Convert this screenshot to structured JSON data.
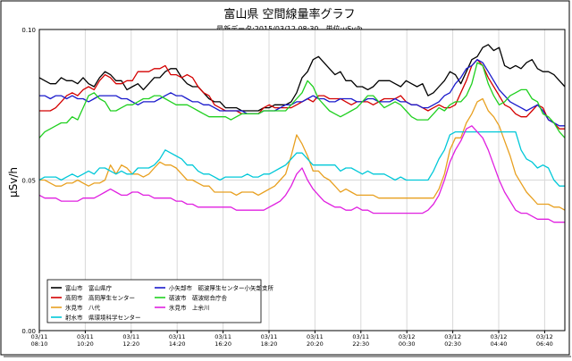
{
  "chart_data": {
    "type": "line",
    "title": "富山県 空間線量率グラフ",
    "subtitle": "最新データ:2015/03/12 08:30　単位:μSv/h",
    "ylabel": "μSv/h",
    "xlabel": "",
    "ylim": [
      0.0,
      0.1
    ],
    "yticks": [
      "0.00",
      "0.05",
      "0.10"
    ],
    "ytick_values": [
      0.0,
      0.05,
      0.1
    ],
    "grid": true,
    "legend_position": "bottom-left",
    "xticks": [
      [
        "03/11",
        "08:10"
      ],
      [
        "03/11",
        "10:20"
      ],
      [
        "03/11",
        "12:20"
      ],
      [
        "03/11",
        "14:20"
      ],
      [
        "03/11",
        "16:20"
      ],
      [
        "03/11",
        "18:20"
      ],
      [
        "03/11",
        "20:20"
      ],
      [
        "03/11",
        "22:30"
      ],
      [
        "03/12",
        "00:30"
      ],
      [
        "03/12",
        "02:30"
      ],
      [
        "03/12",
        "04:40"
      ],
      [
        "03/12",
        "06:40"
      ]
    ],
    "x_start": "03/11 08:10",
    "x_end": "03/12 08:30",
    "series": [
      {
        "name": "富山市　富山県庁",
        "color": "#000000",
        "values": [
          0.084,
          0.083,
          0.082,
          0.082,
          0.084,
          0.083,
          0.083,
          0.082,
          0.084,
          0.082,
          0.081,
          0.084,
          0.086,
          0.085,
          0.083,
          0.083,
          0.08,
          0.081,
          0.082,
          0.08,
          0.082,
          0.084,
          0.084,
          0.086,
          0.087,
          0.087,
          0.084,
          0.082,
          0.081,
          0.081,
          0.079,
          0.077,
          0.076,
          0.076,
          0.074,
          0.074,
          0.074,
          0.073,
          0.073,
          0.073,
          0.073,
          0.074,
          0.074,
          0.075,
          0.075,
          0.075,
          0.076,
          0.079,
          0.084,
          0.086,
          0.09,
          0.091,
          0.089,
          0.087,
          0.085,
          0.086,
          0.083,
          0.083,
          0.081,
          0.081,
          0.08,
          0.081,
          0.083,
          0.083,
          0.083,
          0.082,
          0.081,
          0.083,
          0.082,
          0.081,
          0.082,
          0.078,
          0.079,
          0.081,
          0.083,
          0.086,
          0.085,
          0.082,
          0.086,
          0.09,
          0.091,
          0.094,
          0.095,
          0.093,
          0.094,
          0.088,
          0.087,
          0.088,
          0.087,
          0.089,
          0.09,
          0.087,
          0.086,
          0.086,
          0.085,
          0.083,
          0.081
        ]
      },
      {
        "name": "高岡市　高岡厚生センター",
        "color": "#d40000",
        "values": [
          0.073,
          0.073,
          0.073,
          0.074,
          0.076,
          0.078,
          0.079,
          0.078,
          0.08,
          0.081,
          0.08,
          0.083,
          0.085,
          0.084,
          0.082,
          0.082,
          0.083,
          0.083,
          0.086,
          0.086,
          0.086,
          0.087,
          0.087,
          0.088,
          0.085,
          0.085,
          0.084,
          0.085,
          0.084,
          0.081,
          0.079,
          0.078,
          0.075,
          0.074,
          0.073,
          0.073,
          0.073,
          0.072,
          0.072,
          0.072,
          0.072,
          0.074,
          0.075,
          0.074,
          0.074,
          0.074,
          0.074,
          0.075,
          0.076,
          0.077,
          0.076,
          0.078,
          0.078,
          0.077,
          0.077,
          0.077,
          0.076,
          0.075,
          0.076,
          0.076,
          0.076,
          0.075,
          0.076,
          0.077,
          0.077,
          0.077,
          0.078,
          0.076,
          0.075,
          0.075,
          0.074,
          0.073,
          0.074,
          0.075,
          0.074,
          0.074,
          0.075,
          0.079,
          0.083,
          0.088,
          0.09,
          0.088,
          0.084,
          0.081,
          0.078,
          0.075,
          0.074,
          0.072,
          0.071,
          0.071,
          0.073,
          0.075,
          0.074,
          0.07,
          0.069,
          0.067,
          0.067
        ]
      },
      {
        "name": "氷見市　八代",
        "color": "#e8a020",
        "values": [
          0.05,
          0.05,
          0.049,
          0.048,
          0.048,
          0.049,
          0.049,
          0.05,
          0.049,
          0.048,
          0.049,
          0.049,
          0.05,
          0.055,
          0.052,
          0.055,
          0.054,
          0.052,
          0.052,
          0.051,
          0.052,
          0.054,
          0.056,
          0.055,
          0.055,
          0.054,
          0.052,
          0.05,
          0.05,
          0.049,
          0.048,
          0.048,
          0.046,
          0.046,
          0.046,
          0.046,
          0.045,
          0.046,
          0.046,
          0.046,
          0.045,
          0.046,
          0.047,
          0.048,
          0.05,
          0.052,
          0.058,
          0.065,
          0.062,
          0.058,
          0.053,
          0.053,
          0.051,
          0.05,
          0.048,
          0.046,
          0.047,
          0.046,
          0.045,
          0.045,
          0.045,
          0.045,
          0.044,
          0.044,
          0.044,
          0.044,
          0.044,
          0.044,
          0.044,
          0.044,
          0.044,
          0.044,
          0.044,
          0.047,
          0.052,
          0.06,
          0.064,
          0.064,
          0.069,
          0.072,
          0.076,
          0.077,
          0.073,
          0.071,
          0.068,
          0.063,
          0.058,
          0.052,
          0.049,
          0.046,
          0.044,
          0.042,
          0.042,
          0.042,
          0.041,
          0.041,
          0.04
        ]
      },
      {
        "name": "射水市　県環境科学センター",
        "color": "#00c8d8",
        "values": [
          0.05,
          0.051,
          0.051,
          0.051,
          0.05,
          0.051,
          0.052,
          0.051,
          0.052,
          0.053,
          0.052,
          0.054,
          0.054,
          0.053,
          0.052,
          0.053,
          0.052,
          0.052,
          0.054,
          0.054,
          0.054,
          0.055,
          0.057,
          0.06,
          0.059,
          0.058,
          0.057,
          0.055,
          0.055,
          0.053,
          0.052,
          0.052,
          0.051,
          0.05,
          0.051,
          0.051,
          0.051,
          0.051,
          0.052,
          0.051,
          0.051,
          0.052,
          0.052,
          0.053,
          0.054,
          0.055,
          0.057,
          0.059,
          0.059,
          0.057,
          0.055,
          0.055,
          0.055,
          0.055,
          0.055,
          0.053,
          0.054,
          0.054,
          0.053,
          0.052,
          0.053,
          0.052,
          0.052,
          0.052,
          0.051,
          0.05,
          0.051,
          0.05,
          0.05,
          0.05,
          0.05,
          0.05,
          0.053,
          0.057,
          0.06,
          0.065,
          0.066,
          0.066,
          0.066,
          0.066,
          0.066,
          0.066,
          0.066,
          0.066,
          0.066,
          0.066,
          0.066,
          0.066,
          0.06,
          0.057,
          0.056,
          0.054,
          0.055,
          0.054,
          0.05,
          0.048,
          0.048
        ]
      },
      {
        "name": "小矢部市　砺波厚生センター小矢部支所",
        "color": "#1a1acc",
        "values": [
          0.078,
          0.078,
          0.077,
          0.078,
          0.078,
          0.077,
          0.078,
          0.077,
          0.077,
          0.076,
          0.077,
          0.078,
          0.078,
          0.078,
          0.078,
          0.077,
          0.077,
          0.076,
          0.075,
          0.076,
          0.076,
          0.076,
          0.077,
          0.078,
          0.079,
          0.078,
          0.078,
          0.077,
          0.076,
          0.076,
          0.075,
          0.075,
          0.074,
          0.073,
          0.073,
          0.073,
          0.073,
          0.073,
          0.072,
          0.072,
          0.072,
          0.073,
          0.073,
          0.073,
          0.074,
          0.075,
          0.075,
          0.076,
          0.076,
          0.077,
          0.078,
          0.077,
          0.077,
          0.076,
          0.076,
          0.077,
          0.077,
          0.077,
          0.076,
          0.076,
          0.077,
          0.077,
          0.076,
          0.076,
          0.076,
          0.077,
          0.076,
          0.076,
          0.075,
          0.075,
          0.074,
          0.074,
          0.075,
          0.076,
          0.078,
          0.079,
          0.082,
          0.084,
          0.087,
          0.088,
          0.09,
          0.089,
          0.086,
          0.083,
          0.08,
          0.078,
          0.076,
          0.075,
          0.074,
          0.073,
          0.074,
          0.075,
          0.073,
          0.07,
          0.069,
          0.068,
          0.068
        ]
      },
      {
        "name": "砺波市　砺波総合庁舎",
        "color": "#20d020",
        "values": [
          0.064,
          0.066,
          0.067,
          0.068,
          0.069,
          0.069,
          0.071,
          0.07,
          0.074,
          0.078,
          0.079,
          0.077,
          0.076,
          0.073,
          0.073,
          0.074,
          0.075,
          0.075,
          0.076,
          0.077,
          0.077,
          0.078,
          0.078,
          0.077,
          0.076,
          0.075,
          0.075,
          0.075,
          0.074,
          0.073,
          0.072,
          0.071,
          0.071,
          0.071,
          0.071,
          0.07,
          0.071,
          0.072,
          0.072,
          0.072,
          0.072,
          0.073,
          0.073,
          0.073,
          0.073,
          0.073,
          0.075,
          0.077,
          0.079,
          0.083,
          0.081,
          0.077,
          0.075,
          0.073,
          0.072,
          0.071,
          0.072,
          0.073,
          0.074,
          0.076,
          0.078,
          0.078,
          0.076,
          0.074,
          0.075,
          0.076,
          0.075,
          0.073,
          0.071,
          0.07,
          0.07,
          0.07,
          0.072,
          0.074,
          0.073,
          0.075,
          0.076,
          0.076,
          0.078,
          0.082,
          0.089,
          0.088,
          0.082,
          0.078,
          0.075,
          0.076,
          0.078,
          0.079,
          0.08,
          0.08,
          0.077,
          0.076,
          0.072,
          0.071,
          0.069,
          0.066,
          0.064
        ]
      },
      {
        "name": "氷見市　上余川",
        "color": "#e020e0",
        "values": [
          0.045,
          0.044,
          0.044,
          0.044,
          0.043,
          0.043,
          0.043,
          0.043,
          0.044,
          0.044,
          0.044,
          0.045,
          0.046,
          0.047,
          0.046,
          0.045,
          0.045,
          0.046,
          0.046,
          0.045,
          0.045,
          0.044,
          0.044,
          0.044,
          0.044,
          0.043,
          0.043,
          0.042,
          0.042,
          0.041,
          0.041,
          0.041,
          0.041,
          0.041,
          0.041,
          0.041,
          0.04,
          0.04,
          0.04,
          0.04,
          0.04,
          0.04,
          0.041,
          0.042,
          0.043,
          0.045,
          0.048,
          0.052,
          0.054,
          0.05,
          0.047,
          0.045,
          0.043,
          0.042,
          0.041,
          0.041,
          0.04,
          0.04,
          0.041,
          0.04,
          0.04,
          0.039,
          0.039,
          0.039,
          0.039,
          0.039,
          0.039,
          0.039,
          0.039,
          0.039,
          0.039,
          0.04,
          0.042,
          0.045,
          0.05,
          0.056,
          0.06,
          0.063,
          0.067,
          0.068,
          0.066,
          0.064,
          0.06,
          0.055,
          0.05,
          0.046,
          0.043,
          0.04,
          0.039,
          0.039,
          0.038,
          0.037,
          0.037,
          0.037,
          0.036,
          0.036,
          0.036
        ]
      }
    ]
  }
}
